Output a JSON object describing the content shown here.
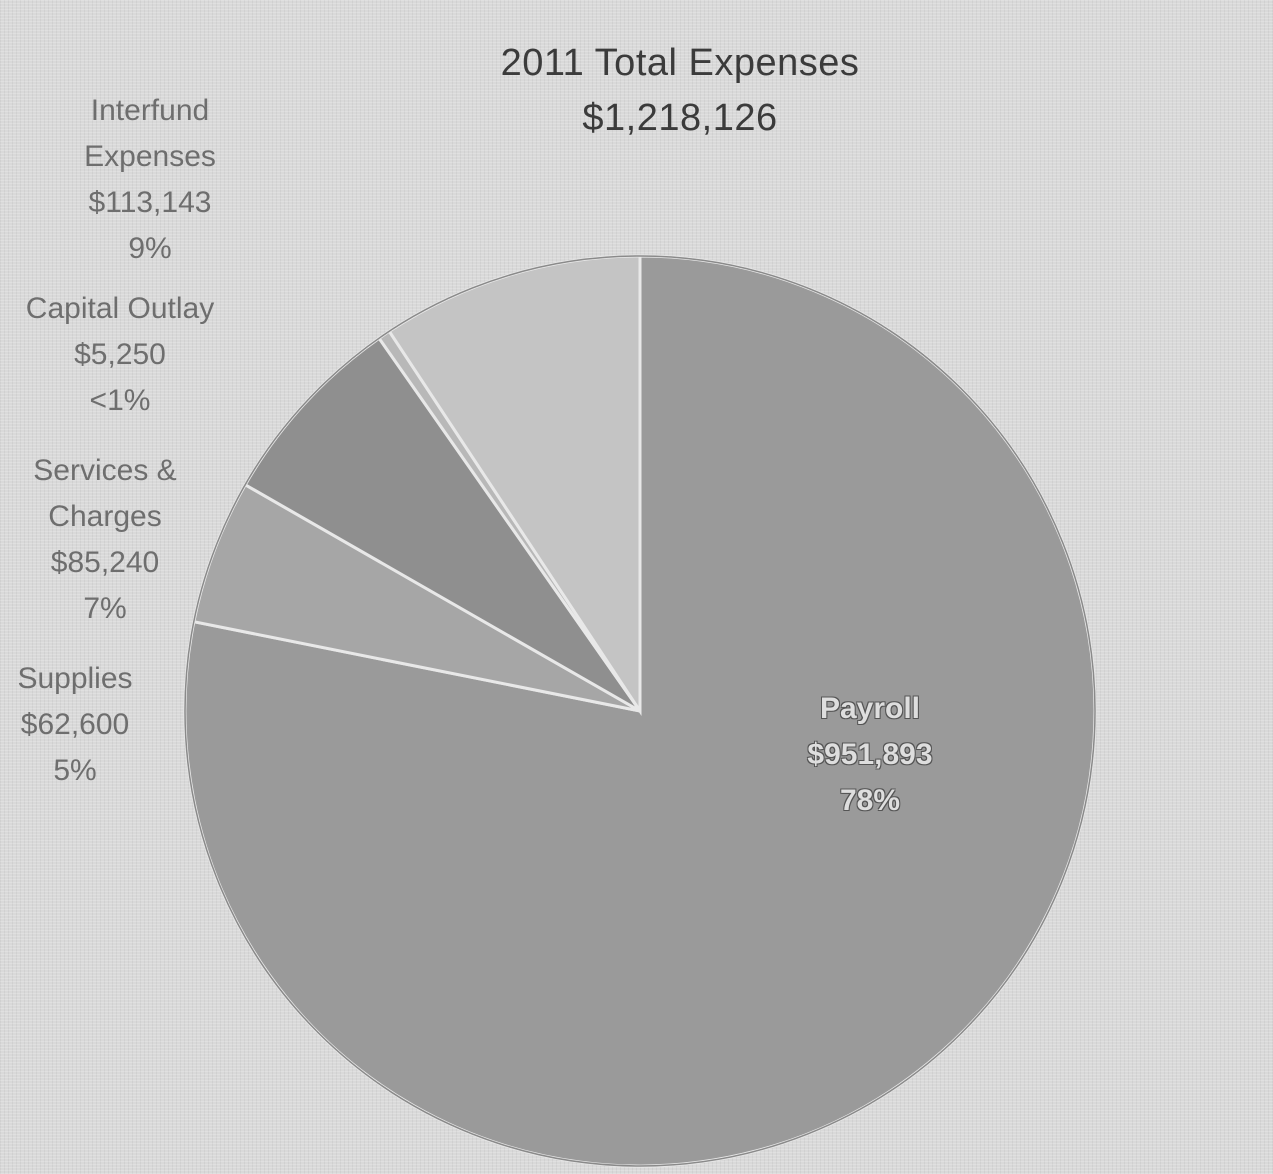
{
  "chart_data": {
    "type": "pie",
    "title": "2011 Total Expenses",
    "subtitle": "$1,218,126",
    "slices": [
      {
        "name": "Payroll",
        "value": 951893,
        "amount_label": "$951,893",
        "percent_label": "78%",
        "color": "#9a9a9a"
      },
      {
        "name": "Supplies",
        "value": 62600,
        "amount_label": "$62,600",
        "percent_label": "5%",
        "color": "#a6a6a6"
      },
      {
        "name": "Services & Charges",
        "value": 85240,
        "amount_label": "$85,240",
        "percent_label": "7%",
        "color": "#8f8f8f"
      },
      {
        "name": "Capital Outlay",
        "value": 5250,
        "amount_label": "$5,250",
        "percent_label": "<1%",
        "color": "#b8b8b8"
      },
      {
        "name": "Interfund Expenses",
        "value": 113143,
        "amount_label": "$113,143",
        "percent_label": "9%",
        "color": "#c4c4c4"
      }
    ],
    "label_lines": {
      "interfund": [
        "Interfund",
        "Expenses",
        "$113,143",
        "9%"
      ],
      "capital": [
        "Capital Outlay",
        "$5,250",
        "<1%"
      ],
      "services": [
        "Services &",
        "Charges",
        "$85,240",
        "7%"
      ],
      "supplies": [
        "Supplies",
        "$62,600",
        "5%"
      ],
      "payroll": [
        "Payroll",
        "$951,893",
        "78%"
      ]
    },
    "legend": "none",
    "start_angle": "12 o'clock, clockwise"
  }
}
